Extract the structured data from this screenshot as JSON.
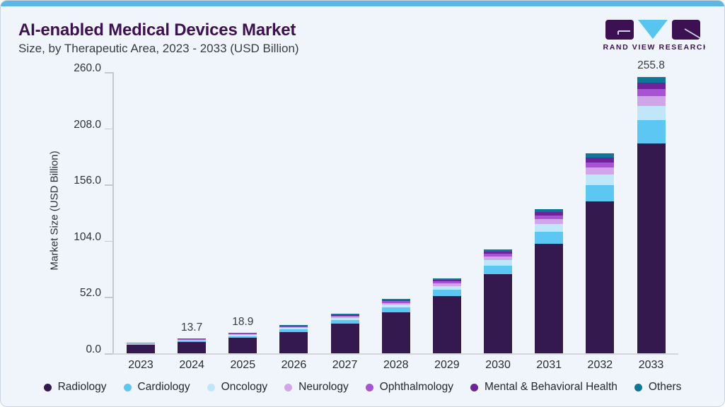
{
  "header": {
    "title": "AI-enabled Medical Devices Market",
    "subtitle": "Size, by Therapeutic Area, 2023 - 2033 (USD Billion)"
  },
  "logo": {
    "brand": "GRAND VIEW RESEARCH",
    "block_color": "#3c1053",
    "triangle_color": "#56c5f0"
  },
  "colors": {
    "card_background": "#eff5fa",
    "accent_bar": "#5ab7e6",
    "title_text": "#3c1053",
    "axis_line": "#c3c9d0",
    "baseline": "#d3d7dc"
  },
  "chart_data": {
    "type": "bar",
    "stacked": true,
    "title": "AI-enabled Medical Devices Market",
    "subtitle": "Size, by Therapeutic Area, 2023 - 2033 (USD Billion)",
    "ylabel": "Market Size (USD Billion)",
    "xlabel": "",
    "ylim": [
      0,
      260
    ],
    "yticks": [
      0,
      52,
      104,
      156,
      208,
      260
    ],
    "ytick_labels": [
      "0.0",
      "52.0",
      "104.0",
      "156.0",
      "208.0",
      "260.0"
    ],
    "grid": false,
    "legend_position": "bottom",
    "categories": [
      "2023",
      "2024",
      "2025",
      "2026",
      "2027",
      "2028",
      "2029",
      "2030",
      "2031",
      "2032",
      "2033"
    ],
    "totals": [
      9.9,
      13.7,
      18.9,
      26.2,
      36.3,
      50.2,
      69.5,
      96.3,
      133.4,
      184.8,
      255.8
    ],
    "bar_labels": [
      "",
      "13.7",
      "18.9",
      "",
      "",
      "",
      "",
      "",
      "",
      "",
      "255.8"
    ],
    "series": [
      {
        "name": "Radiology",
        "color": "#34194e",
        "values": [
          7.6,
          10.4,
          14.3,
          19.9,
          27.6,
          38.1,
          52.8,
          73.1,
          101.3,
          140.3,
          194.2
        ]
      },
      {
        "name": "Cardiology",
        "color": "#5cc7f2",
        "values": [
          0.8,
          1.1,
          1.6,
          2.2,
          3.0,
          4.2,
          5.8,
          8.0,
          11.1,
          15.3,
          21.2
        ]
      },
      {
        "name": "Oncology",
        "color": "#bfe6f9",
        "values": [
          0.5,
          0.7,
          1.0,
          1.4,
          1.9,
          2.6,
          3.6,
          5.0,
          6.9,
          9.6,
          13.3
        ]
      },
      {
        "name": "Neurology",
        "color": "#d0a6e8",
        "values": [
          0.3,
          0.5,
          0.7,
          0.9,
          1.3,
          1.8,
          2.4,
          3.4,
          4.7,
          6.5,
          9.0
        ]
      },
      {
        "name": "Ophthalmology",
        "color": "#a753d4",
        "values": [
          0.3,
          0.4,
          0.5,
          0.7,
          1.0,
          1.4,
          1.9,
          2.6,
          3.6,
          5.0,
          6.9
        ]
      },
      {
        "name": "Mental & Behavioral Health",
        "color": "#6e239b",
        "values": [
          0.2,
          0.3,
          0.4,
          0.6,
          0.8,
          1.1,
          1.5,
          2.1,
          2.9,
          4.1,
          5.6
        ]
      },
      {
        "name": "Others",
        "color": "#0c7898",
        "values": [
          0.2,
          0.3,
          0.4,
          0.5,
          0.7,
          1.0,
          1.5,
          2.1,
          2.9,
          4.0,
          5.6
        ]
      }
    ]
  }
}
